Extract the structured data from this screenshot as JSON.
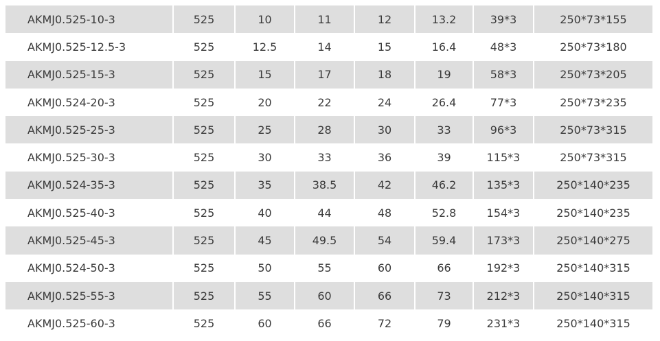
{
  "table": {
    "rows": [
      [
        "AKMJ0.525-10-3",
        "525",
        "10",
        "11",
        "12",
        "13.2",
        "39*3",
        "250*73*155"
      ],
      [
        "AKMJ0.525-12.5-3",
        "525",
        "12.5",
        "14",
        "15",
        "16.4",
        "48*3",
        "250*73*180"
      ],
      [
        "AKMJ0.525-15-3",
        "525",
        "15",
        "17",
        "18",
        "19",
        "58*3",
        "250*73*205"
      ],
      [
        "AKMJ0.524-20-3",
        "525",
        "20",
        "22",
        "24",
        "26.4",
        "77*3",
        "250*73*235"
      ],
      [
        "AKMJ0.525-25-3",
        "525",
        "25",
        "28",
        "30",
        "33",
        "96*3",
        "250*73*315"
      ],
      [
        "AKMJ0.525-30-3",
        "525",
        "30",
        "33",
        "36",
        "39",
        "115*3",
        "250*73*315"
      ],
      [
        "AKMJ0.524-35-3",
        "525",
        "35",
        "38.5",
        "42",
        "46.2",
        "135*3",
        "250*140*235"
      ],
      [
        "AKMJ0.525-40-3",
        "525",
        "40",
        "44",
        "48",
        "52.8",
        "154*3",
        "250*140*235"
      ],
      [
        "AKMJ0.525-45-3",
        "525",
        "45",
        "49.5",
        "54",
        "59.4",
        "173*3",
        "250*140*275"
      ],
      [
        "AKMJ0.524-50-3",
        "525",
        "50",
        "55",
        "60",
        "66",
        "192*3",
        "250*140*315"
      ],
      [
        "AKMJ0.525-55-3",
        "525",
        "55",
        "60",
        "66",
        "73",
        "212*3",
        "250*140*315"
      ],
      [
        "AKMJ0.525-60-3",
        "525",
        "60",
        "66",
        "72",
        "79",
        "231*3",
        "250*140*315"
      ]
    ],
    "shade_color": "#dedede"
  }
}
